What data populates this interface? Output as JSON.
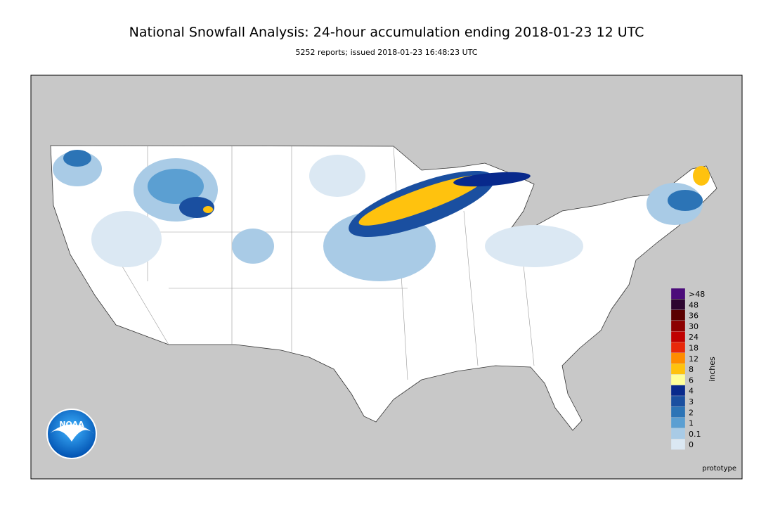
{
  "header": {
    "title": "National Snowfall Analysis: 24-hour accumulation ending 2018-01-23 12 UTC",
    "subtitle": "5252 reports; issued 2018-01-23 16:48:23 UTC"
  },
  "legend": {
    "title": "inches",
    "items": [
      {
        "label": ">48",
        "color": "#4b0c7a"
      },
      {
        "label": "48",
        "color": "#2d0530"
      },
      {
        "label": "36",
        "color": "#5a0000"
      },
      {
        "label": "30",
        "color": "#8c0000"
      },
      {
        "label": "24",
        "color": "#c00000"
      },
      {
        "label": "18",
        "color": "#e8280a"
      },
      {
        "label": "12",
        "color": "#ff8c00"
      },
      {
        "label": "8",
        "color": "#ffc20e"
      },
      {
        "label": "6",
        "color": "#ffff99"
      },
      {
        "label": "4",
        "color": "#08298c"
      },
      {
        "label": "3",
        "color": "#1a4fa0"
      },
      {
        "label": "2",
        "color": "#2c74b6"
      },
      {
        "label": "1",
        "color": "#5b9fd2"
      },
      {
        "label": "0.1",
        "color": "#a9cbe6"
      },
      {
        "label": "0",
        "color": "#dbe8f3"
      }
    ]
  },
  "footnote": "prototype",
  "logo": {
    "text": "NOAA"
  }
}
